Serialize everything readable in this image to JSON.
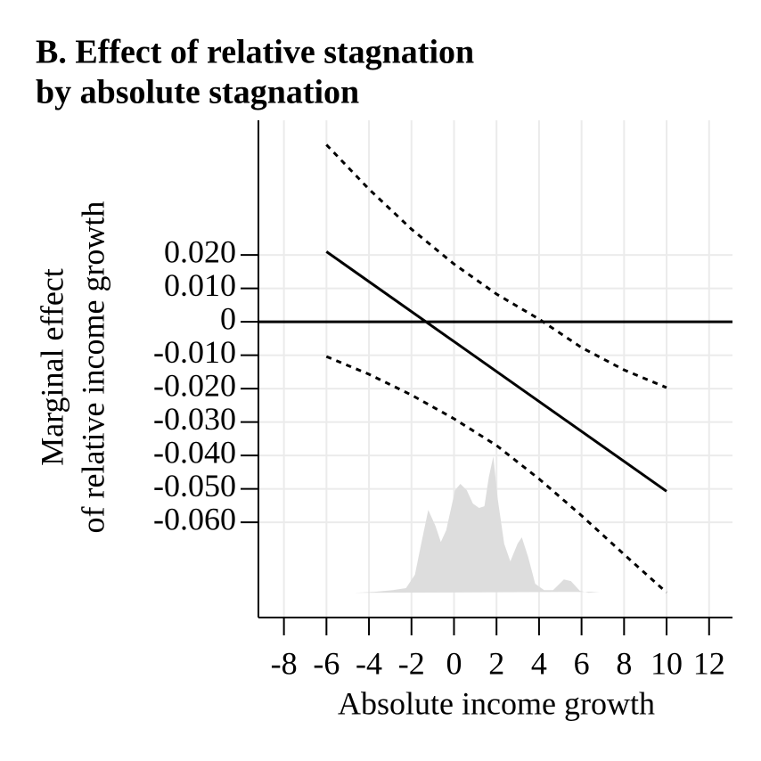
{
  "chart_data": {
    "type": "line",
    "title": [
      "B. Effect of relative stagnation",
      "by absolute stagnation"
    ],
    "x_label": "Absolute income growth",
    "y_label": [
      "Marginal effect",
      "of relative income growth"
    ],
    "xlim": [
      -9.2,
      13.1
    ],
    "ylim": [
      -0.0885,
      0.0603
    ],
    "xticks": [
      -8,
      -6,
      -4,
      -2,
      0,
      2,
      4,
      6,
      8,
      10,
      12
    ],
    "yticks": [
      {
        "value": 0.02,
        "label": "0.020"
      },
      {
        "value": 0.01,
        "label": "0.010"
      },
      0,
      {
        "value": -0.01,
        "label": "-0.010"
      },
      {
        "value": -0.02,
        "label": "-0.020"
      },
      {
        "value": -0.03,
        "label": "-0.030"
      },
      {
        "value": -0.04,
        "label": "-0.040"
      },
      {
        "value": -0.05,
        "label": "-0.050"
      },
      {
        "value": -0.06,
        "label": "-0.060"
      }
    ],
    "grid": true,
    "reference_line": 0,
    "series": [
      {
        "style": "area",
        "color": "#dddddd",
        "x": [
          -4.69,
          -3.72,
          -2.88,
          -2.26,
          -1.84,
          -1.54,
          -1.21,
          -0.87,
          -0.62,
          -0.37,
          0.05,
          0.3,
          0.6,
          0.89,
          1.18,
          1.43,
          1.64,
          1.85,
          2.06,
          2.36,
          2.65,
          2.99,
          3.19,
          3.49,
          3.82,
          4.24,
          4.66,
          5.17,
          5.5,
          5.92,
          6.34,
          6.84
        ],
        "values": [
          -0.0811,
          -0.0808,
          -0.0803,
          -0.0797,
          -0.0757,
          -0.0664,
          -0.0563,
          -0.0611,
          -0.0659,
          -0.0624,
          -0.0504,
          -0.0485,
          -0.0504,
          -0.0544,
          -0.0557,
          -0.0552,
          -0.0464,
          -0.0403,
          -0.0531,
          -0.0664,
          -0.0717,
          -0.0664,
          -0.0645,
          -0.0704,
          -0.0784,
          -0.0803,
          -0.0803,
          -0.0771,
          -0.0776,
          -0.0805,
          -0.0811,
          -0.0808
        ]
      },
      {
        "style": "dashed",
        "color": "#000000",
        "x": [
          -6,
          -4,
          -2,
          0,
          2,
          4,
          6,
          8,
          10
        ],
        "values": [
          0.053,
          0.0397,
          0.0277,
          0.0173,
          0.0083,
          0.0008,
          -0.0077,
          -0.0144,
          -0.0197
        ]
      },
      {
        "style": "dashed",
        "color": "#000000",
        "x": [
          -6,
          -4,
          -2,
          0,
          2,
          4,
          6,
          8,
          10
        ],
        "values": [
          -0.0104,
          -0.0157,
          -0.0219,
          -0.029,
          -0.037,
          -0.047,
          -0.058,
          -0.0696,
          -0.081
        ]
      },
      {
        "style": "solid",
        "color": "#000000",
        "x": [
          -6,
          10
        ],
        "values": [
          0.021,
          -0.0507
        ]
      }
    ]
  }
}
